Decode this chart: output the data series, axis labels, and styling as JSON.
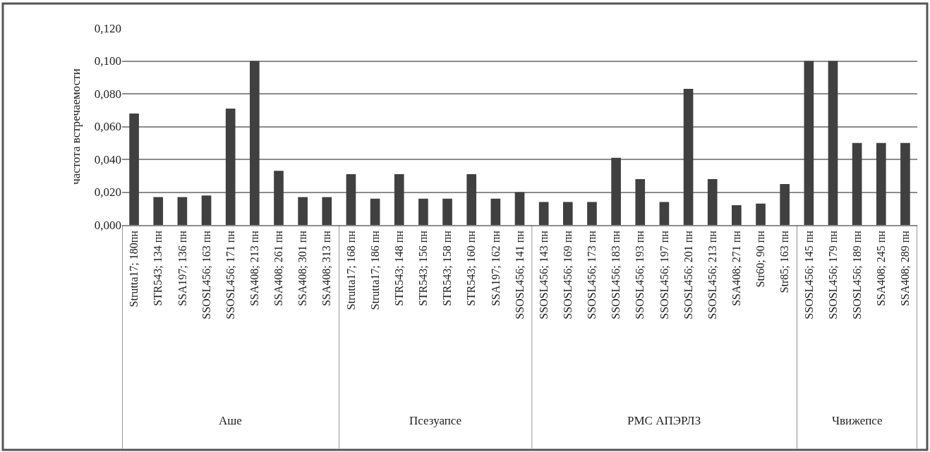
{
  "chart_data": [
    {
      "type": "bar",
      "ylabel": "частота встречаемости",
      "xlabel": "Аше",
      "categories": [
        "Strutta17; 180пн",
        "STR543; 134 пн",
        "SSA197; 136 пн",
        "SSOSL456; 163 пн",
        "SSOSL456; 171 пн",
        "SSA408; 213 пн",
        "SSA408; 261 пн",
        "SSA408; 301 пн",
        "SSA408; 313 пн"
      ],
      "values": [
        0.068,
        0.017,
        0.017,
        0.018,
        0.071,
        0.1,
        0.033,
        0.017,
        0.017
      ],
      "color": "#404040",
      "ylim": [
        0,
        0.12
      ],
      "yticks": [
        {
          "value": 0,
          "label": "0,000"
        },
        {
          "value": 0.02,
          "label": "0,020"
        },
        {
          "value": 0.04,
          "label": "0,040"
        },
        {
          "value": 0.06,
          "label": "0,060"
        },
        {
          "value": 0.08,
          "label": "0,080"
        },
        {
          "value": 0.1,
          "label": "0,100"
        },
        {
          "value": 0.12,
          "label": "0,120"
        }
      ],
      "grid": "y"
    },
    {
      "type": "bar",
      "xlabel": "Псезуапсе",
      "categories": [
        "Strutta17; 168 пн",
        "Strutta17; 186 пн",
        "STR543; 148 пн",
        "STR543; 156 пн",
        "STR543; 158 пн",
        "STR543; 160 пн",
        "SSA197; 162 пн",
        "SSOSL456; 141 пн"
      ],
      "values": [
        0.031,
        0.016,
        0.031,
        0.016,
        0.016,
        0.031,
        0.016,
        0.02
      ],
      "color": "#404040",
      "ylim": [
        0,
        0.12
      ],
      "yticks": [
        0,
        0.02,
        0.04,
        0.06,
        0.08,
        0.1,
        0.12
      ],
      "grid": "y",
      "tick_labels": "x"
    },
    {
      "type": "bar",
      "xlabel": "РМС АПЭРЛЗ",
      "categories": [
        "SSOSL456; 143 пн",
        "SSOSL456; 169 пн",
        "SSOSL456; 173 пн",
        "SSOSL456; 183 пн",
        "SSOSL456; 193 пн",
        "SSOSL456; 197 пн",
        "SSOSL456; 201 пн",
        "SSOSL456; 213 пн",
        "SSA408; 271 пн",
        "Str60; 90 пн",
        "Str85; 163 пн"
      ],
      "values": [
        0.014,
        0.014,
        0.014,
        0.041,
        0.028,
        0.014,
        0.083,
        0.028,
        0.012,
        0.013,
        0.025
      ],
      "color": "#404040",
      "ylim": [
        0,
        0.12
      ],
      "yticks": [
        0,
        0.02,
        0.04,
        0.06,
        0.08,
        0.1,
        0.12
      ],
      "grid": "y",
      "tick_labels": "x"
    },
    {
      "type": "bar",
      "xlabel": "Чвижепсе",
      "categories": [
        "SSOSL456; 145 пн",
        "SSOSL456; 179 пн",
        "SSOSL456; 189 пн",
        "SSA408; 245 пн",
        "SSA408; 289 пн"
      ],
      "values": [
        0.1,
        0.1,
        0.05,
        0.05,
        0.05
      ],
      "color": "#404040",
      "ylim": [
        0,
        0.12
      ],
      "yticks": [
        0,
        0.02,
        0.04,
        0.06,
        0.08,
        0.1,
        0.12
      ],
      "grid": "y",
      "tick_labels": "x"
    }
  ]
}
